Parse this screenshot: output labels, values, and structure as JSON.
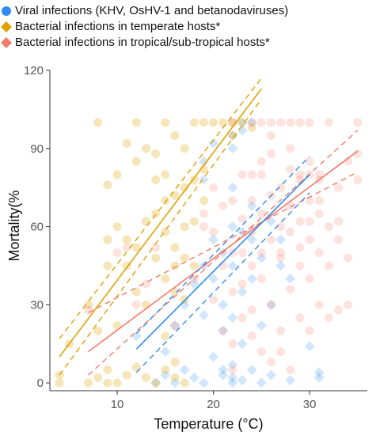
{
  "colors": {
    "viral": "#2f8cf0",
    "temperate": "#e0a100",
    "tropical": "#f47a6b",
    "axis": "#333333",
    "tick_text": "#555555",
    "background": "#ffffff"
  },
  "legend": {
    "placement": "top",
    "items": [
      {
        "label": "Viral infections (KHV, OsHV-1 and betanodaviruses)",
        "color": "#2f8cf0",
        "symbol": "circle"
      },
      {
        "label": "Bacterial infections in temperate hosts*",
        "color": "#e0a100",
        "symbol": "diamond"
      },
      {
        "label": "Bacterial infections in tropical/sub-tropical hosts*",
        "color": "#f47a6b",
        "symbol": "diamond"
      }
    ]
  },
  "chart_data": {
    "type": "scatter",
    "xlabel": "Temperature (°C)",
    "ylabel": "Mortality(%",
    "xlim": [
      3,
      36
    ],
    "ylim": [
      -3,
      120
    ],
    "xticks": [
      10,
      20,
      30
    ],
    "yticks": [
      0,
      30,
      60,
      90,
      120
    ],
    "grid": false,
    "series": [
      {
        "name": "Viral infections (KHV, OsHV-1 and betanodaviruses)",
        "color": "#2f8cf0",
        "marker": "diamond",
        "points": [
          [
            14,
            0
          ],
          [
            15,
            3
          ],
          [
            16,
            0
          ],
          [
            17,
            5
          ],
          [
            18,
            2
          ],
          [
            19,
            0
          ],
          [
            20,
            10
          ],
          [
            21,
            5
          ],
          [
            21,
            3
          ],
          [
            22,
            0
          ],
          [
            22,
            7
          ],
          [
            22,
            2
          ],
          [
            23,
            1
          ],
          [
            24,
            5
          ],
          [
            25,
            0
          ],
          [
            26,
            3
          ],
          [
            28,
            1
          ],
          [
            31,
            2
          ],
          [
            31,
            4
          ],
          [
            30,
            14
          ],
          [
            12,
            18
          ],
          [
            15,
            12
          ],
          [
            16,
            22
          ],
          [
            17,
            30
          ],
          [
            18,
            38
          ],
          [
            19,
            26
          ],
          [
            19,
            45
          ],
          [
            20,
            40
          ],
          [
            20,
            55
          ],
          [
            21,
            50
          ],
          [
            21,
            30
          ],
          [
            21,
            20
          ],
          [
            22,
            25
          ],
          [
            22,
            45
          ],
          [
            22,
            60
          ],
          [
            22,
            75
          ],
          [
            23,
            35
          ],
          [
            23,
            58
          ],
          [
            23,
            15
          ],
          [
            24,
            40
          ],
          [
            24,
            68
          ],
          [
            24,
            55
          ],
          [
            25,
            22
          ],
          [
            25,
            48
          ],
          [
            26,
            62
          ],
          [
            26,
            30
          ],
          [
            27,
            45
          ],
          [
            27,
            55
          ],
          [
            28,
            40
          ],
          [
            19,
            85
          ],
          [
            19,
            78
          ],
          [
            20,
            92
          ],
          [
            22,
            90
          ],
          [
            22,
            95
          ],
          [
            23,
            100
          ],
          [
            24,
            100
          ],
          [
            23,
            97
          ]
        ]
      },
      {
        "name": "Bacterial infections in temperate hosts*",
        "color": "#e0a100",
        "marker": "circle",
        "points": [
          [
            4,
            0
          ],
          [
            4,
            3
          ],
          [
            7,
            0
          ],
          [
            8,
            2
          ],
          [
            9,
            0
          ],
          [
            9,
            5
          ],
          [
            10,
            0
          ],
          [
            11,
            3
          ],
          [
            12,
            6
          ],
          [
            13,
            2
          ],
          [
            14,
            0
          ],
          [
            15,
            5
          ],
          [
            16,
            2
          ],
          [
            17,
            0
          ],
          [
            5,
            15
          ],
          [
            7,
            30
          ],
          [
            8,
            20
          ],
          [
            10,
            22
          ],
          [
            11,
            45
          ],
          [
            12,
            35
          ],
          [
            13,
            30
          ],
          [
            14,
            48
          ],
          [
            15,
            40
          ],
          [
            16,
            35
          ],
          [
            17,
            32
          ],
          [
            17,
            48
          ],
          [
            18,
            45
          ],
          [
            9,
            55
          ],
          [
            9,
            45
          ],
          [
            10,
            60
          ],
          [
            11,
            55
          ],
          [
            12,
            52
          ],
          [
            13,
            62
          ],
          [
            14,
            65
          ],
          [
            15,
            58
          ],
          [
            16,
            52
          ],
          [
            15,
            70
          ],
          [
            14,
            78
          ],
          [
            15,
            80
          ],
          [
            16,
            72
          ],
          [
            17,
            75
          ],
          [
            9,
            76
          ],
          [
            10,
            80
          ],
          [
            11,
            92
          ],
          [
            12,
            85
          ],
          [
            13,
            90
          ],
          [
            14,
            88
          ],
          [
            15,
            100
          ],
          [
            16,
            95
          ],
          [
            17,
            90
          ],
          [
            18,
            100
          ],
          [
            8,
            100
          ],
          [
            12,
            100
          ],
          [
            19,
            100
          ],
          [
            20,
            100
          ],
          [
            22,
            100
          ],
          [
            23,
            100
          ],
          [
            21,
            100
          ],
          [
            24,
            98
          ],
          [
            22,
            95
          ],
          [
            19,
            82
          ],
          [
            18,
            78
          ],
          [
            17,
            60
          ],
          [
            18,
            62
          ],
          [
            19,
            70
          ],
          [
            16,
            45
          ],
          [
            15,
            18
          ],
          [
            16,
            8
          ]
        ]
      },
      {
        "name": "Bacterial infections in tropical/sub-tropical hosts*",
        "color": "#f47a6b",
        "marker": "circle",
        "points": [
          [
            7,
            28
          ],
          [
            10,
            50
          ],
          [
            11,
            52
          ],
          [
            12,
            30
          ],
          [
            13,
            38
          ],
          [
            14,
            52
          ],
          [
            16,
            22
          ],
          [
            18,
            40
          ],
          [
            19,
            60
          ],
          [
            20,
            32
          ],
          [
            20,
            58
          ],
          [
            21,
            20
          ],
          [
            21,
            45
          ],
          [
            22,
            15
          ],
          [
            22,
            35
          ],
          [
            22,
            50
          ],
          [
            23,
            38
          ],
          [
            23,
            50
          ],
          [
            23,
            63
          ],
          [
            24,
            28
          ],
          [
            24,
            45
          ],
          [
            24,
            58
          ],
          [
            24,
            70
          ],
          [
            25,
            12
          ],
          [
            25,
            40
          ],
          [
            25,
            50
          ],
          [
            25,
            65
          ],
          [
            25,
            80
          ],
          [
            26,
            30
          ],
          [
            26,
            55
          ],
          [
            26,
            72
          ],
          [
            26,
            88
          ],
          [
            27,
            20
          ],
          [
            27,
            48
          ],
          [
            27,
            60
          ],
          [
            27,
            75
          ],
          [
            27,
            50
          ],
          [
            28,
            36
          ],
          [
            28,
            58
          ],
          [
            28,
            68
          ],
          [
            28,
            82
          ],
          [
            29,
            25
          ],
          [
            29,
            45
          ],
          [
            29,
            62
          ],
          [
            29,
            78
          ],
          [
            30,
            40
          ],
          [
            30,
            55
          ],
          [
            30,
            70
          ],
          [
            30,
            85
          ],
          [
            31,
            30
          ],
          [
            31,
            50
          ],
          [
            31,
            65
          ],
          [
            31,
            78
          ],
          [
            32,
            45
          ],
          [
            32,
            60
          ],
          [
            33,
            28
          ],
          [
            33,
            62
          ],
          [
            33,
            75
          ],
          [
            34,
            30
          ],
          [
            34,
            48
          ],
          [
            35,
            88
          ],
          [
            34,
            85
          ],
          [
            35,
            78
          ],
          [
            22,
            100
          ],
          [
            24,
            100
          ],
          [
            25,
            100
          ],
          [
            26,
            100
          ],
          [
            27,
            100
          ],
          [
            28,
            100
          ],
          [
            29,
            100
          ],
          [
            30,
            100
          ],
          [
            32,
            100
          ],
          [
            35,
            100
          ],
          [
            26,
            95
          ],
          [
            28,
            90
          ],
          [
            29,
            80
          ],
          [
            30,
            80
          ],
          [
            31,
            80
          ],
          [
            25,
            85
          ],
          [
            24,
            80
          ],
          [
            23,
            80
          ],
          [
            22,
            70
          ],
          [
            21,
            68
          ],
          [
            20,
            75
          ],
          [
            19,
            65
          ],
          [
            23,
            25
          ],
          [
            24,
            18
          ],
          [
            26,
            8
          ],
          [
            27,
            12
          ],
          [
            28,
            5
          ],
          [
            22,
            5
          ],
          [
            30,
            20
          ],
          [
            32,
            25
          ],
          [
            30,
            62
          ],
          [
            29,
            52
          ],
          [
            31,
            70
          ],
          [
            33,
            55
          ]
        ]
      }
    ],
    "fit_lines": [
      {
        "name": "temperate",
        "color": "#e0a100",
        "fit": [
          [
            4,
            10
          ],
          [
            25,
            113
          ]
        ],
        "ci_upper": [
          [
            4,
            17
          ],
          [
            25,
            117
          ]
        ],
        "ci_lower": [
          [
            4,
            3
          ],
          [
            25,
            109
          ]
        ]
      },
      {
        "name": "tropical",
        "color": "#f47a6b",
        "fit": [
          [
            7,
            12
          ],
          [
            35,
            89
          ]
        ],
        "ci_upper": [
          [
            7,
            27
          ],
          [
            35,
            81
          ]
        ],
        "ci_lower": [
          [
            7,
            3
          ],
          [
            35,
            97
          ]
        ]
      },
      {
        "name": "viral",
        "color": "#2f8cf0",
        "fit": [
          [
            12,
            13
          ],
          [
            30,
            80
          ]
        ],
        "ci_upper": [
          [
            12,
            19
          ],
          [
            30,
            87
          ]
        ],
        "ci_lower": [
          [
            12,
            4
          ],
          [
            30,
            73
          ]
        ]
      }
    ]
  }
}
